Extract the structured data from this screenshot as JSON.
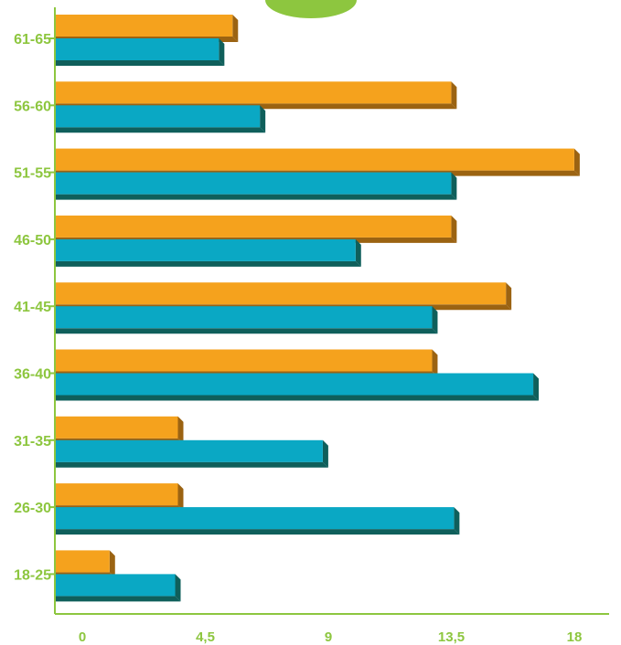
{
  "colors": {
    "axis": "#8dc63f",
    "label": "#8dc63f",
    "series_orange_front": "#f5a21d",
    "series_orange_dark": "#9b6312",
    "series_teal_front": "#0aa8c4",
    "series_teal_dark": "#0f5f5b",
    "circle": "#8dc63f"
  },
  "chart_data": {
    "type": "bar",
    "orientation": "horizontal",
    "categories": [
      "61-65",
      "56-60",
      "51-55",
      "46-50",
      "41-45",
      "36-40",
      "31-35",
      "26-30",
      "18-25"
    ],
    "series": [
      {
        "color": "#f5a21d",
        "values": [
          6.5,
          14.5,
          19.0,
          14.5,
          16.5,
          13.8,
          4.5,
          4.5,
          2.0
        ]
      },
      {
        "color": "#0aa8c4",
        "values": [
          6.0,
          7.5,
          14.5,
          11.0,
          13.8,
          17.5,
          9.8,
          14.6,
          4.4
        ]
      }
    ],
    "xticks": [
      "0",
      "4,5",
      "9",
      "13,5",
      "18"
    ],
    "xtick_values": [
      0,
      4.5,
      9,
      13.5,
      18
    ],
    "xlim": [
      0,
      20
    ],
    "title": "",
    "xlabel": "",
    "ylabel": "",
    "grid": false,
    "legend": "none"
  }
}
